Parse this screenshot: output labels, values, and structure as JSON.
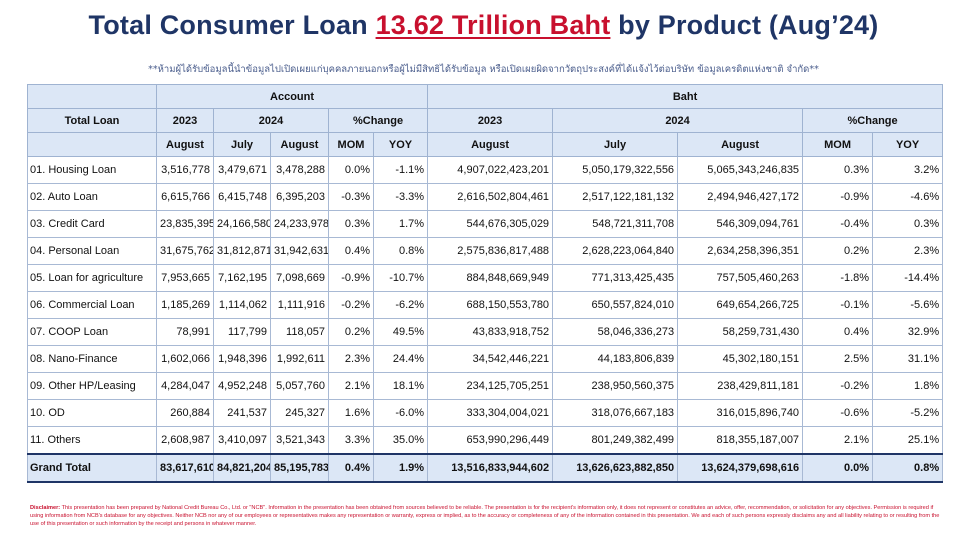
{
  "title": {
    "before": "Total Consumer Loan ",
    "highlight": "13.62 Trillion Baht",
    "after": " by Product (Aug’24)"
  },
  "note": "**ห้ามผู้ได้รับข้อมูลนี้นำข้อมูลไปเปิดเผยแก่บุคคลภายนอกหรือผู้ไม่มีสิทธิได้รับข้อมูล หรือเปิดเผยผิดจากวัตถุประสงค์ที่ได้แจ้งไว้ต่อบริษัท ข้อมูลเครดิตแห่งชาติ จำกัด**",
  "headers": {
    "total_loan": "Total Loan",
    "account": "Account",
    "baht": "Baht",
    "y2023": "2023",
    "y2024": "2024",
    "pct_change": "%Change",
    "august": "August",
    "july": "July",
    "mom": "MOM",
    "yoy": "YOY"
  },
  "rows": [
    {
      "name": "01. Housing Loan",
      "acc_aug23": "3,516,778",
      "acc_jul24": "3,479,671",
      "acc_aug24": "3,478,288",
      "acc_mom": "0.0%",
      "acc_yoy": "-1.1%",
      "baht_aug23": "4,907,022,423,201",
      "baht_jul24": "5,050,179,322,556",
      "baht_aug24": "5,065,343,246,835",
      "baht_mom": "0.3%",
      "baht_yoy": "3.2%"
    },
    {
      "name": "02. Auto Loan",
      "acc_aug23": "6,615,766",
      "acc_jul24": "6,415,748",
      "acc_aug24": "6,395,203",
      "acc_mom": "-0.3%",
      "acc_yoy": "-3.3%",
      "baht_aug23": "2,616,502,804,461",
      "baht_jul24": "2,517,122,181,132",
      "baht_aug24": "2,494,946,427,172",
      "baht_mom": "-0.9%",
      "baht_yoy": "-4.6%"
    },
    {
      "name": "03. Credit Card",
      "acc_aug23": "23,835,395",
      "acc_jul24": "24,166,580",
      "acc_aug24": "24,233,978",
      "acc_mom": "0.3%",
      "acc_yoy": "1.7%",
      "baht_aug23": "544,676,305,029",
      "baht_jul24": "548,721,311,708",
      "baht_aug24": "546,309,094,761",
      "baht_mom": "-0.4%",
      "baht_yoy": "0.3%"
    },
    {
      "name": "04. Personal Loan",
      "acc_aug23": "31,675,762",
      "acc_jul24": "31,812,871",
      "acc_aug24": "31,942,631",
      "acc_mom": "0.4%",
      "acc_yoy": "0.8%",
      "baht_aug23": "2,575,836,817,488",
      "baht_jul24": "2,628,223,064,840",
      "baht_aug24": "2,634,258,396,351",
      "baht_mom": "0.2%",
      "baht_yoy": "2.3%"
    },
    {
      "name": "05. Loan for agriculture",
      "acc_aug23": "7,953,665",
      "acc_jul24": "7,162,195",
      "acc_aug24": "7,098,669",
      "acc_mom": "-0.9%",
      "acc_yoy": "-10.7%",
      "baht_aug23": "884,848,669,949",
      "baht_jul24": "771,313,425,435",
      "baht_aug24": "757,505,460,263",
      "baht_mom": "-1.8%",
      "baht_yoy": "-14.4%"
    },
    {
      "name": "06. Commercial Loan",
      "acc_aug23": "1,185,269",
      "acc_jul24": "1,114,062",
      "acc_aug24": "1,111,916",
      "acc_mom": "-0.2%",
      "acc_yoy": "-6.2%",
      "baht_aug23": "688,150,553,780",
      "baht_jul24": "650,557,824,010",
      "baht_aug24": "649,654,266,725",
      "baht_mom": "-0.1%",
      "baht_yoy": "-5.6%"
    },
    {
      "name": "07. COOP Loan",
      "acc_aug23": "78,991",
      "acc_jul24": "117,799",
      "acc_aug24": "118,057",
      "acc_mom": "0.2%",
      "acc_yoy": "49.5%",
      "baht_aug23": "43,833,918,752",
      "baht_jul24": "58,046,336,273",
      "baht_aug24": "58,259,731,430",
      "baht_mom": "0.4%",
      "baht_yoy": "32.9%"
    },
    {
      "name": "08. Nano-Finance",
      "acc_aug23": "1,602,066",
      "acc_jul24": "1,948,396",
      "acc_aug24": "1,992,611",
      "acc_mom": "2.3%",
      "acc_yoy": "24.4%",
      "baht_aug23": "34,542,446,221",
      "baht_jul24": "44,183,806,839",
      "baht_aug24": "45,302,180,151",
      "baht_mom": "2.5%",
      "baht_yoy": "31.1%"
    },
    {
      "name": "09. Other HP/Leasing",
      "acc_aug23": "4,284,047",
      "acc_jul24": "4,952,248",
      "acc_aug24": "5,057,760",
      "acc_mom": "2.1%",
      "acc_yoy": "18.1%",
      "baht_aug23": "234,125,705,251",
      "baht_jul24": "238,950,560,375",
      "baht_aug24": "238,429,811,181",
      "baht_mom": "-0.2%",
      "baht_yoy": "1.8%"
    },
    {
      "name": "10. OD",
      "acc_aug23": "260,884",
      "acc_jul24": "241,537",
      "acc_aug24": "245,327",
      "acc_mom": "1.6%",
      "acc_yoy": "-6.0%",
      "baht_aug23": "333,304,004,021",
      "baht_jul24": "318,076,667,183",
      "baht_aug24": "316,015,896,740",
      "baht_mom": "-0.6%",
      "baht_yoy": "-5.2%"
    },
    {
      "name": "11. Others",
      "acc_aug23": "2,608,987",
      "acc_jul24": "3,410,097",
      "acc_aug24": "3,521,343",
      "acc_mom": "3.3%",
      "acc_yoy": "35.0%",
      "baht_aug23": "653,990,296,449",
      "baht_jul24": "801,249,382,499",
      "baht_aug24": "818,355,187,007",
      "baht_mom": "2.1%",
      "baht_yoy": "25.1%"
    }
  ],
  "grand_total": {
    "name": "Grand Total",
    "acc_aug23": "83,617,610",
    "acc_jul24": "84,821,204",
    "acc_aug24": "85,195,783",
    "acc_mom": "0.4%",
    "acc_yoy": "1.9%",
    "baht_aug23": "13,516,833,944,602",
    "baht_jul24": "13,626,623,882,850",
    "baht_aug24": "13,624,379,698,616",
    "baht_mom": "0.0%",
    "baht_yoy": "0.8%"
  },
  "disclaimer": {
    "label": "Disclaimer:",
    "text": " This presentation has been prepared by National Credit Bureau Co., Ltd. or \"NCB\". Information in the presentation has been obtained from sources believed to be reliable. The presentation is for the recipient's information only, it does not represent or constitutes an advice, offer, recommendation, or solicitation for any objectives. Permission is required if using information from NCB's database for any objectives. Neither NCB nor any of our employees or representatives makes any representation or warranty, express or implied, as to the accuracy or completeness of any of the information contained in this presentation. We and each of such persons expressly disclaims any and all liability relating to or resulting from the use of this presentation or such information by the receipt and persons in whatever manner."
  },
  "colors": {
    "title": "#1f3566",
    "highlight": "#c8102e",
    "header_bg": "#dce7f6",
    "grid": "#a8b9d4"
  }
}
